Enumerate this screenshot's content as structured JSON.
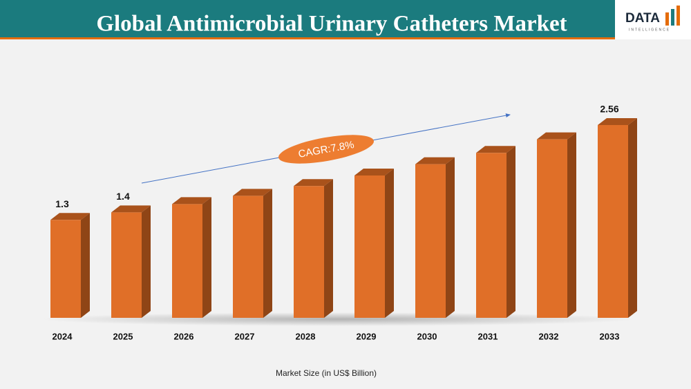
{
  "header": {
    "title": "Global Antimicrobial Urinary Catheters Market"
  },
  "logo": {
    "text": "DATA",
    "subtext": "INTELLIGENCE"
  },
  "chart_data": {
    "type": "bar",
    "categories": [
      "2024",
      "2025",
      "2026",
      "2027",
      "2028",
      "2029",
      "2030",
      "2031",
      "2032",
      "2033"
    ],
    "values": [
      1.3,
      1.4,
      1.51,
      1.62,
      1.75,
      1.89,
      2.04,
      2.19,
      2.37,
      2.56
    ],
    "value_labels": [
      "1.3",
      "1.4",
      null,
      null,
      null,
      null,
      null,
      null,
      null,
      "2.56"
    ],
    "color": "#e06f28",
    "annotation": "CAGR:7.8%",
    "x_label": "Market Size (in US$ Billion)"
  }
}
